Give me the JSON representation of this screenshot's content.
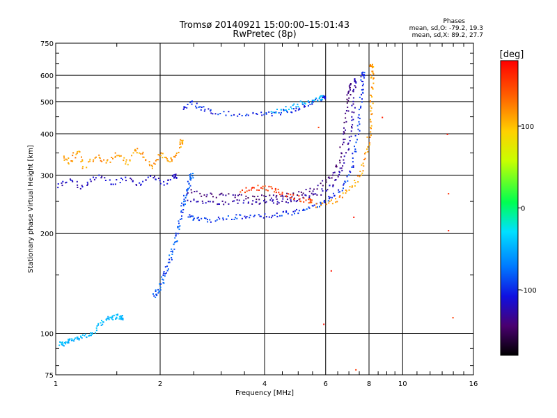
{
  "chart_data": {
    "type": "scatter",
    "title": "Tromsø 20140921 15:00:00–15:01:43",
    "subtitle": "RwPretec (8p)",
    "xlabel": "Frequency [MHz]",
    "ylabel": "Stationary phase Virtual Height [km]",
    "xscale": "log",
    "yscale": "log",
    "xlim": [
      1,
      16
    ],
    "ylim": [
      75,
      750
    ],
    "x_ticks": [
      1,
      2,
      4,
      6,
      8,
      10,
      16
    ],
    "y_ticks": [
      75,
      100,
      200,
      300,
      400,
      500,
      600,
      750
    ],
    "grid": true,
    "phase_info": {
      "heading": "Phases",
      "line_o": "mean, sd,O: -79.2, 19.3",
      "line_x": "mean, sd,X:  89.2, 27.7"
    },
    "colorbar": {
      "label": "[deg]",
      "range": [
        -180,
        180
      ],
      "ticks": [
        100,
        0,
        -100
      ]
    },
    "series": [
      {
        "trace": "low-E",
        "colour_deg": -40,
        "points": [
          [
            1.02,
            94
          ],
          [
            1.05,
            93
          ],
          [
            1.08,
            95
          ],
          [
            1.12,
            96
          ],
          [
            1.16,
            98
          ],
          [
            1.22,
            99
          ],
          [
            1.28,
            100
          ],
          [
            1.35,
            108
          ],
          [
            1.4,
            111
          ],
          [
            1.45,
            112
          ],
          [
            1.5,
            113
          ],
          [
            1.55,
            112
          ]
        ]
      },
      {
        "trace": "F1-rise",
        "colour_deg": -80,
        "points": [
          [
            1.9,
            130
          ],
          [
            1.95,
            133
          ],
          [
            2.0,
            140
          ],
          [
            2.05,
            150
          ],
          [
            2.1,
            160
          ],
          [
            2.15,
            175
          ],
          [
            2.2,
            190
          ],
          [
            2.24,
            205
          ],
          [
            2.28,
            225
          ],
          [
            2.32,
            245
          ],
          [
            2.36,
            262
          ],
          [
            2.4,
            280
          ],
          [
            2.45,
            300
          ]
        ]
      },
      {
        "trace": "F2-o-base",
        "colour_deg": -90,
        "points": [
          [
            2.4,
            230
          ],
          [
            2.5,
            222
          ],
          [
            2.7,
            220
          ],
          [
            3.0,
            222
          ],
          [
            3.3,
            225
          ],
          [
            3.6,
            226
          ],
          [
            4.0,
            227
          ],
          [
            4.4,
            229
          ],
          [
            4.8,
            232
          ],
          [
            5.2,
            237
          ],
          [
            5.6,
            244
          ],
          [
            6.0,
            252
          ],
          [
            6.4,
            265
          ],
          [
            6.8,
            285
          ],
          [
            7.1,
            320
          ],
          [
            7.3,
            370
          ],
          [
            7.45,
            430
          ],
          [
            7.55,
            500
          ],
          [
            7.6,
            560
          ],
          [
            7.65,
            610
          ]
        ]
      },
      {
        "trace": "F2-o-mid",
        "colour_deg": -120,
        "points": [
          [
            2.4,
            255
          ],
          [
            2.7,
            250
          ],
          [
            3.0,
            250
          ],
          [
            3.4,
            250
          ],
          [
            3.8,
            248
          ],
          [
            4.2,
            250
          ],
          [
            4.6,
            252
          ],
          [
            5.0,
            255
          ],
          [
            5.5,
            262
          ],
          [
            6.0,
            272
          ],
          [
            6.4,
            290
          ],
          [
            6.7,
            320
          ],
          [
            6.95,
            370
          ],
          [
            7.1,
            430
          ],
          [
            7.2,
            500
          ],
          [
            7.25,
            580
          ]
        ]
      },
      {
        "trace": "F2-o-spread",
        "colour_deg": -135,
        "points": [
          [
            2.4,
            270
          ],
          [
            2.7,
            262
          ],
          [
            3.0,
            262
          ],
          [
            3.4,
            260
          ],
          [
            3.8,
            258
          ],
          [
            4.2,
            258
          ],
          [
            4.6,
            262
          ],
          [
            5.2,
            268
          ],
          [
            5.8,
            280
          ],
          [
            6.2,
            300
          ],
          [
            6.5,
            330
          ],
          [
            6.7,
            380
          ],
          [
            6.85,
            440
          ],
          [
            6.95,
            510
          ],
          [
            7.0,
            560
          ]
        ]
      },
      {
        "trace": "F2-x",
        "colour_deg": 120,
        "points": [
          [
            5.6,
            243
          ],
          [
            6.2,
            250
          ],
          [
            6.7,
            262
          ],
          [
            7.2,
            282
          ],
          [
            7.6,
            310
          ],
          [
            7.85,
            350
          ],
          [
            8.0,
            400
          ],
          [
            8.08,
            460
          ],
          [
            8.12,
            520
          ],
          [
            8.15,
            600
          ],
          [
            8.1,
            640
          ]
        ]
      },
      {
        "trace": "F2-x-orange",
        "colour_deg": 155,
        "points": [
          [
            3.4,
            270
          ],
          [
            3.7,
            276
          ],
          [
            4.0,
            276
          ],
          [
            4.3,
            272
          ],
          [
            4.6,
            262
          ],
          [
            5.0,
            256
          ],
          [
            5.4,
            252
          ]
        ]
      },
      {
        "trace": "F-upper",
        "colour_deg": -95,
        "points": [
          [
            2.3,
            470
          ],
          [
            2.45,
            500
          ],
          [
            2.6,
            480
          ],
          [
            2.8,
            470
          ],
          [
            3.2,
            462
          ],
          [
            3.6,
            460
          ],
          [
            4.0,
            460
          ],
          [
            4.4,
            465
          ],
          [
            4.8,
            475
          ],
          [
            5.2,
            490
          ],
          [
            5.6,
            505
          ],
          [
            5.9,
            520
          ]
        ]
      },
      {
        "trace": "upper-cyan",
        "colour_deg": -40,
        "points": [
          [
            4.2,
            470
          ],
          [
            4.6,
            480
          ],
          [
            5.0,
            495
          ],
          [
            5.4,
            505
          ],
          [
            5.8,
            515
          ]
        ]
      },
      {
        "trace": "sporadic-left",
        "colour_deg": 120,
        "points": [
          [
            1.05,
            340
          ],
          [
            1.1,
            330
          ],
          [
            1.15,
            360
          ],
          [
            1.2,
            320
          ],
          [
            1.3,
            345
          ],
          [
            1.4,
            330
          ],
          [
            1.5,
            350
          ],
          [
            1.6,
            325
          ],
          [
            1.7,
            360
          ],
          [
            1.8,
            340
          ],
          [
            1.9,
            320
          ],
          [
            2.0,
            350
          ],
          [
            2.1,
            330
          ],
          [
            2.2,
            345
          ],
          [
            2.3,
            380
          ]
        ]
      },
      {
        "trace": "sporadic-left-blue",
        "colour_deg": -110,
        "points": [
          [
            1.0,
            280
          ],
          [
            1.1,
            290
          ],
          [
            1.2,
            275
          ],
          [
            1.3,
            300
          ],
          [
            1.45,
            285
          ],
          [
            1.6,
            295
          ],
          [
            1.75,
            280
          ],
          [
            1.9,
            300
          ],
          [
            2.05,
            285
          ],
          [
            2.2,
            300
          ]
        ]
      },
      {
        "trace": "isolated",
        "colour_deg": 160,
        "points": [
          [
            5.7,
            420
          ],
          [
            7.2,
            225
          ],
          [
            8.7,
            450
          ],
          [
            13.4,
            400
          ],
          [
            13.5,
            265
          ],
          [
            13.5,
            205
          ],
          [
            13.9,
            112
          ],
          [
            7.3,
            78
          ],
          [
            6.2,
            155
          ],
          [
            5.9,
            107
          ]
        ]
      }
    ]
  }
}
